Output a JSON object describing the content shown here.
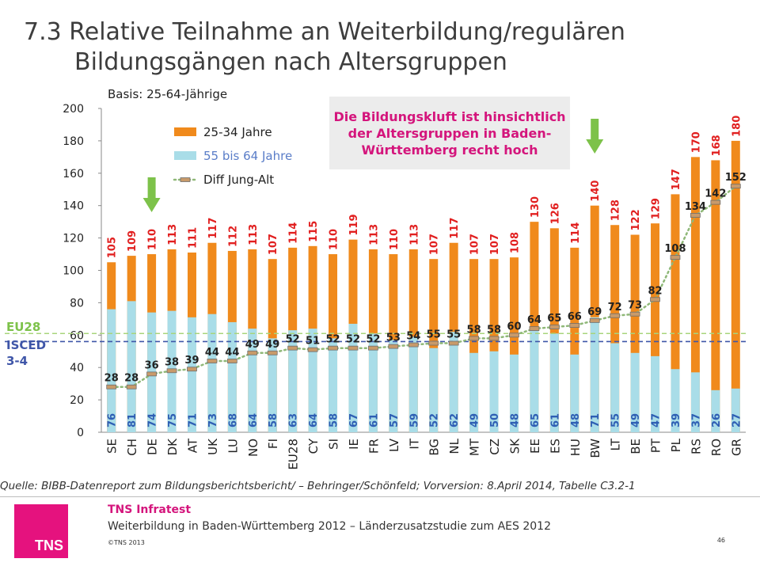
{
  "page": {
    "title_line1": "7.3 Relative Teilnahme an Weiterbildung/regulären",
    "title_line2": "Bildungsgängen nach Altersgruppen",
    "basis": "Basis: 25-64-Jährige",
    "callout": "Die Bildungskluft ist hinsichtlich der Altersgruppen in Baden-Württemberg recht hoch",
    "ref_label_eu28": "EU28",
    "ref_label_isced": "ISCED 3-4",
    "source": "Quelle: BIBB-Datenreport zum Bildungsberichtsbericht/ – Behringer/Schönfeld; Vorversion: 8.April 2014, Tabelle C3.2-1",
    "company": "TNS Infratest",
    "subtitle": "Weiterbildung in Baden-Württemberg 2012 – Länderzusatzstudie zum AES 2012",
    "copyright": "©TNS 2013",
    "page_number": "46",
    "logo_text": "TNS"
  },
  "colors": {
    "young": "#f08a1c",
    "old": "#a9dde8",
    "diff_line": "#8fb878",
    "value_young": "#e11f1f",
    "value_old": "#2f5fb4",
    "ref_eu28": "#a8d47c",
    "ref_isced": "#3f56a8",
    "arrow": "#7dc24a",
    "callout_text": "#d4157c"
  },
  "chart_data": {
    "type": "bar",
    "categories": [
      "SE",
      "CH",
      "DE",
      "DK",
      "AT",
      "UK",
      "LU",
      "NO",
      "FI",
      "EU28",
      "CY",
      "SI",
      "IE",
      "FR",
      "LV",
      "IT",
      "BG",
      "NL",
      "MT",
      "CZ",
      "SK",
      "EE",
      "ES",
      "HU",
      "BW",
      "LT",
      "BE",
      "PT",
      "PL",
      "RS",
      "RO",
      "GR"
    ],
    "series": [
      {
        "name": "25-34 Jahre",
        "kind": "bar-back",
        "values": [
          105,
          109,
          110,
          113,
          111,
          117,
          112,
          113,
          107,
          114,
          115,
          110,
          119,
          113,
          110,
          113,
          107,
          117,
          107,
          107,
          108,
          130,
          126,
          114,
          140,
          128,
          122,
          129,
          147,
          170,
          168,
          180
        ]
      },
      {
        "name": "55 bis 64 Jahre",
        "kind": "bar-front",
        "values": [
          76,
          81,
          74,
          75,
          71,
          73,
          68,
          64,
          58,
          63,
          64,
          58,
          67,
          61,
          57,
          59,
          52,
          62,
          49,
          50,
          48,
          65,
          61,
          48,
          71,
          55,
          49,
          47,
          39,
          37,
          26,
          27
        ]
      },
      {
        "name": "Diff Jung-Alt",
        "kind": "line",
        "values": [
          28,
          28,
          36,
          38,
          39,
          44,
          44,
          49,
          49,
          52,
          51,
          52,
          52,
          52,
          53,
          54,
          55,
          55,
          58,
          58,
          60,
          64,
          65,
          66,
          69,
          72,
          73,
          82,
          108,
          134,
          142,
          152
        ]
      }
    ],
    "ylim": [
      0,
      200
    ],
    "yticks": [
      0,
      20,
      40,
      60,
      80,
      100,
      120,
      140,
      160,
      180,
      200
    ],
    "reference_lines": [
      {
        "name": "EU28",
        "value": 61
      },
      {
        "name": "ISCED 3-4",
        "value": 56
      }
    ],
    "highlight_arrows": [
      "DE",
      "BW"
    ],
    "legend_position": "top-left",
    "grid": false
  }
}
